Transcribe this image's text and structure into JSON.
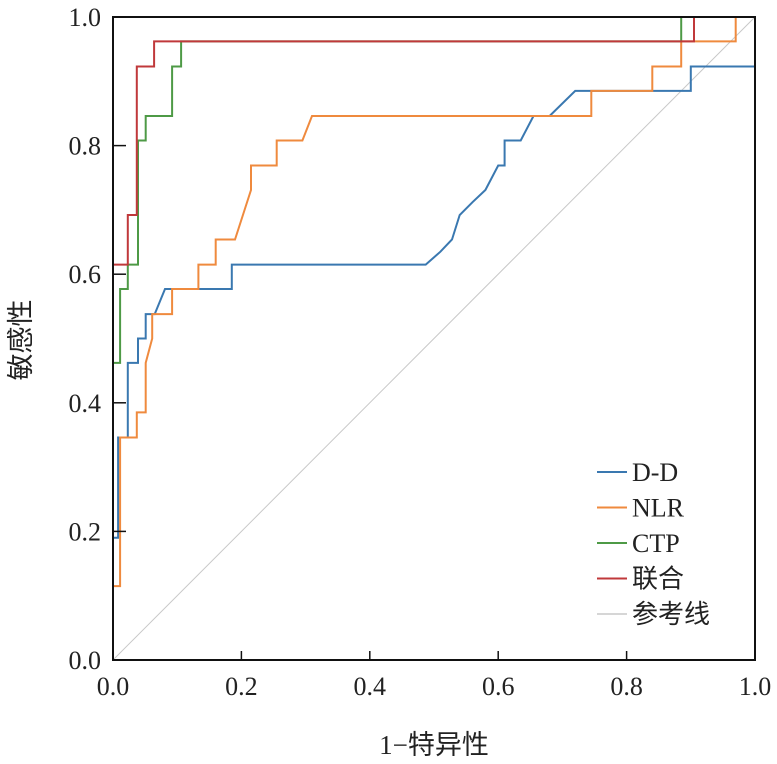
{
  "chart_data": {
    "type": "line",
    "title": "",
    "xlabel": "1−特异性",
    "ylabel": "敏感性",
    "xlim": [
      0,
      1
    ],
    "ylim": [
      0,
      1
    ],
    "xticks": [
      "0.0",
      "0.2",
      "0.4",
      "0.6",
      "0.8",
      "1.0"
    ],
    "yticks": [
      "0.0",
      "0.2",
      "0.4",
      "0.6",
      "0.8",
      "1.0"
    ],
    "grid": false,
    "legend_position": "bottom-right",
    "series": [
      {
        "name": "D-D",
        "color": "#3a78b0",
        "x": [
          0,
          0.008,
          0.008,
          0.023,
          0.023,
          0.039,
          0.039,
          0.051,
          0.051,
          0.065,
          0.081,
          0.185,
          0.185,
          0.487,
          0.51,
          0.528,
          0.54,
          0.56,
          0.58,
          0.6,
          0.6,
          0.61,
          0.61,
          0.635,
          0.655,
          0.68,
          0.72,
          0.9,
          0.9,
          1.0,
          1.0
        ],
        "y": [
          0.19,
          0.19,
          0.346,
          0.346,
          0.462,
          0.462,
          0.5,
          0.5,
          0.538,
          0.538,
          0.577,
          0.577,
          0.615,
          0.615,
          0.635,
          0.654,
          0.692,
          0.712,
          0.731,
          0.769,
          0.769,
          0.769,
          0.808,
          0.808,
          0.846,
          0.846,
          0.885,
          0.885,
          0.923,
          0.923,
          1.0
        ]
      },
      {
        "name": "NLR",
        "color": "#ef8a3e",
        "x": [
          0,
          0,
          0.011,
          0.011,
          0.037,
          0.037,
          0.051,
          0.051,
          0.061,
          0.061,
          0.092,
          0.092,
          0.133,
          0.133,
          0.16,
          0.16,
          0.19,
          0.215,
          0.215,
          0.255,
          0.255,
          0.295,
          0.31,
          0.745,
          0.745,
          0.84,
          0.84,
          0.885,
          0.885,
          0.97,
          0.97,
          1.0
        ],
        "y": [
          0,
          0.115,
          0.115,
          0.346,
          0.346,
          0.385,
          0.385,
          0.462,
          0.5,
          0.538,
          0.538,
          0.577,
          0.577,
          0.615,
          0.615,
          0.654,
          0.654,
          0.731,
          0.769,
          0.769,
          0.808,
          0.808,
          0.846,
          0.846,
          0.885,
          0.885,
          0.923,
          0.923,
          0.962,
          0.962,
          1.0,
          1.0
        ]
      },
      {
        "name": "CTP",
        "color": "#4e9a46",
        "x": [
          0,
          0,
          0.011,
          0.011,
          0.023,
          0.023,
          0.039,
          0.039,
          0.051,
          0.051,
          0.092,
          0.092,
          0.106,
          0.106,
          0.885,
          0.885,
          1.0
        ],
        "y": [
          0,
          0.462,
          0.462,
          0.577,
          0.577,
          0.615,
          0.615,
          0.808,
          0.808,
          0.846,
          0.846,
          0.923,
          0.923,
          0.962,
          0.962,
          1.0,
          1.0
        ]
      },
      {
        "name": "联合",
        "color": "#c0393b",
        "x": [
          0,
          0,
          0.023,
          0.023,
          0.037,
          0.037,
          0.064,
          0.064,
          0.905,
          0.905,
          1.0
        ],
        "y": [
          0,
          0.615,
          0.615,
          0.692,
          0.692,
          0.923,
          0.923,
          0.962,
          0.962,
          1.0,
          1.0
        ]
      },
      {
        "name": "参考线",
        "color": "#c8c8c8",
        "x": [
          0,
          1
        ],
        "y": [
          0,
          1
        ]
      }
    ]
  }
}
